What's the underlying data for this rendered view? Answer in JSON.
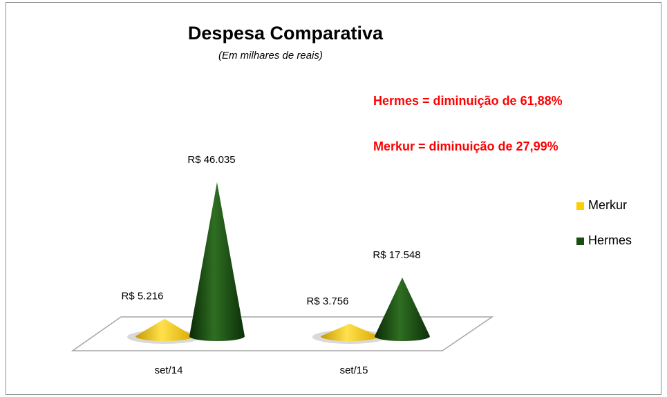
{
  "chart_data": {
    "type": "cone",
    "title": "Despesa Comparativa",
    "subtitle": "(Em milhares de reais)",
    "annotations": [
      "Hermes = diminuição de 61,88%",
      "Merkur = diminuição de 27,99%"
    ],
    "categories": [
      "set/14",
      "set/15"
    ],
    "series": [
      {
        "name": "Merkur",
        "color": "#ffcc00",
        "values": [
          5216,
          3756
        ],
        "value_labels": [
          "R$ 5.216",
          "R$ 3.756"
        ]
      },
      {
        "name": "Hermes",
        "color": "#1a4d12",
        "values": [
          46035,
          17548
        ],
        "value_labels": [
          "R$ 46.035",
          "R$ 17.548"
        ]
      }
    ],
    "legend": "right"
  }
}
